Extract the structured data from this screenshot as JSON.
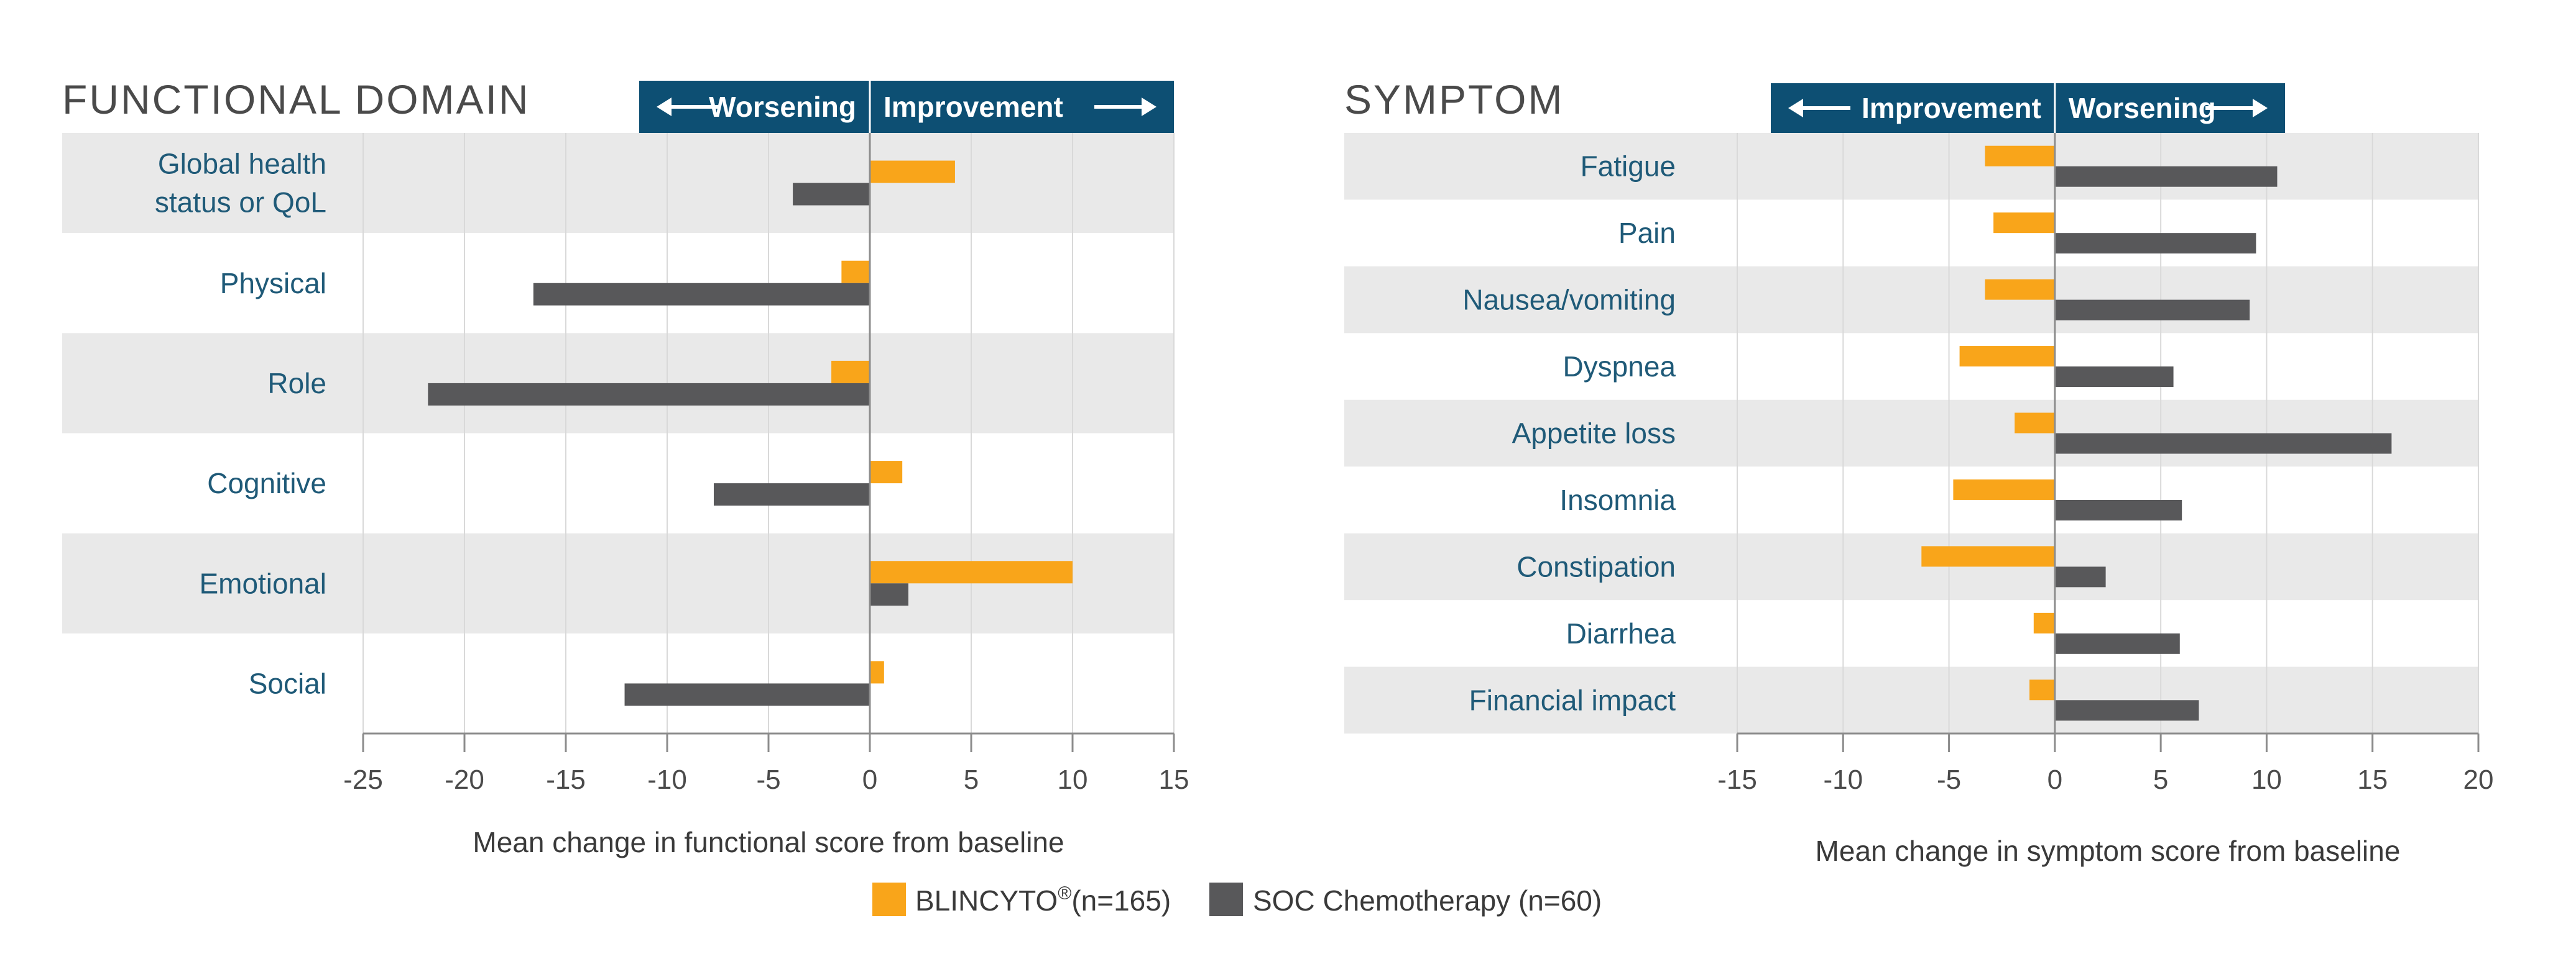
{
  "colors": {
    "blincyto": "#f9a51a",
    "soc": "#58585a",
    "header": "#0d4f73",
    "band": "#e9e9e9",
    "grid": "#d9d9d9",
    "axis": "#8c8c8c",
    "label": "#1f5a78"
  },
  "chart_data": [
    {
      "type": "bar",
      "orientation": "horizontal",
      "title": "FUNCTIONAL DOMAIN",
      "left_direction": "Worsening",
      "right_direction": "Improvement",
      "xlabel": "Mean change in functional score from baseline",
      "xlim": [
        -25,
        15
      ],
      "xticks": [
        -25,
        -20,
        -15,
        -10,
        -5,
        0,
        5,
        10,
        15
      ],
      "categories": [
        "Global health\nstatus or QoL",
        "Physical",
        "Role",
        "Cognitive",
        "Emotional",
        "Social"
      ],
      "series": [
        {
          "name": "BLINCYTO",
          "values": [
            4.2,
            -1.4,
            -1.9,
            1.6,
            10.0,
            0.7
          ]
        },
        {
          "name": "SOC Chemotherapy",
          "values": [
            -3.8,
            -16.6,
            -21.8,
            -7.7,
            1.9,
            -12.1
          ]
        }
      ]
    },
    {
      "type": "bar",
      "orientation": "horizontal",
      "title": "SYMPTOM",
      "left_direction": "Improvement",
      "right_direction": "Worsening",
      "xlabel": "Mean change in symptom score from baseline",
      "xlim": [
        -15,
        20
      ],
      "xticks": [
        -15,
        -10,
        -5,
        0,
        5,
        10,
        15,
        20
      ],
      "categories": [
        "Fatigue",
        "Pain",
        "Nausea/vomiting",
        "Dyspnea",
        "Appetite loss",
        "Insomnia",
        "Constipation",
        "Diarrhea",
        "Financial impact"
      ],
      "series": [
        {
          "name": "BLINCYTO",
          "values": [
            -3.3,
            -2.9,
            -3.3,
            -4.5,
            -1.9,
            -4.8,
            -6.3,
            -1.0,
            -1.2
          ]
        },
        {
          "name": "SOC Chemotherapy",
          "values": [
            10.5,
            9.5,
            9.2,
            5.6,
            15.9,
            6.0,
            2.4,
            5.9,
            6.8
          ]
        }
      ]
    }
  ],
  "legend": {
    "blincyto_name": "BLINCYTO",
    "blincyto_sup": "®",
    "blincyto_n": "(n=165)",
    "soc_label": "SOC Chemotherapy (n=60)"
  }
}
